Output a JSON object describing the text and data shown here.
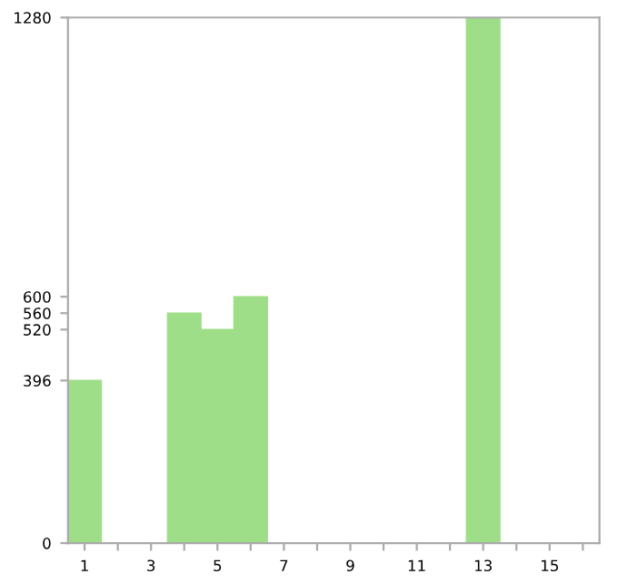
{
  "chart_data": {
    "type": "bar",
    "categories": [
      "1",
      null,
      "3",
      null,
      "5",
      null,
      "7",
      null,
      "9",
      null,
      "11",
      null,
      "13",
      null,
      "15",
      null
    ],
    "values": [
      396,
      0,
      0,
      560,
      520,
      600,
      0,
      0,
      0,
      0,
      0,
      0,
      1280,
      0,
      0,
      0
    ],
    "color": "#9ede88",
    "ylim": [
      0,
      1280
    ],
    "yticks": [
      0,
      396,
      520,
      560,
      600,
      1280
    ],
    "grid": false,
    "legend": false
  }
}
